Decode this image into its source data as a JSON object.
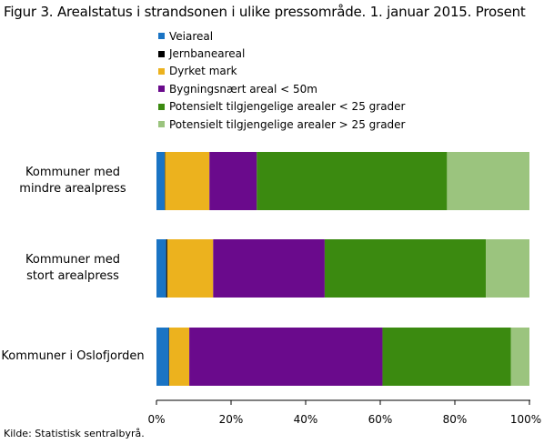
{
  "chart_data": {
    "type": "bar",
    "orientation": "horizontal",
    "stacked": true,
    "title": "Figur 3. Arealstatus i strandsonen i ulike pressområde. 1. januar 2015. Prosent",
    "categories": [
      [
        "Kommuner med",
        "mindre arealpress"
      ],
      [
        "Kommuner med",
        "stort arealpress"
      ],
      [
        "Kommuner i Oslofjorden"
      ]
    ],
    "series": [
      {
        "name": "Veiareal",
        "color": "#1a74c4",
        "values": [
          2.2,
          2.6,
          3.3
        ]
      },
      {
        "name": "Jernbaneareal",
        "color": "#000000",
        "values": [
          0.1,
          0.3,
          0.1
        ]
      },
      {
        "name": "Dyrket mark",
        "color": "#ecb21e",
        "values": [
          11.9,
          12.3,
          5.4
        ]
      },
      {
        "name": "Bygningsnært areal < 50m",
        "color": "#6a0a8c",
        "values": [
          12.7,
          29.9,
          51.8
        ]
      },
      {
        "name": "Potensielt tilgjengelige arealer < 25 grader",
        "color": "#3b8a10",
        "values": [
          51.0,
          43.2,
          34.4
        ]
      },
      {
        "name": "Potensielt tilgjengelige arealer > 25 grader",
        "color": "#9bc47e",
        "values": [
          22.1,
          11.7,
          5.0
        ]
      }
    ],
    "xlim": [
      0,
      100
    ],
    "xticks": [
      "0%",
      "20%",
      "40%",
      "60%",
      "80%",
      "100%"
    ],
    "grid": false,
    "legend_position": "top"
  },
  "source": "Kilde: Statistisk sentralbyrå."
}
